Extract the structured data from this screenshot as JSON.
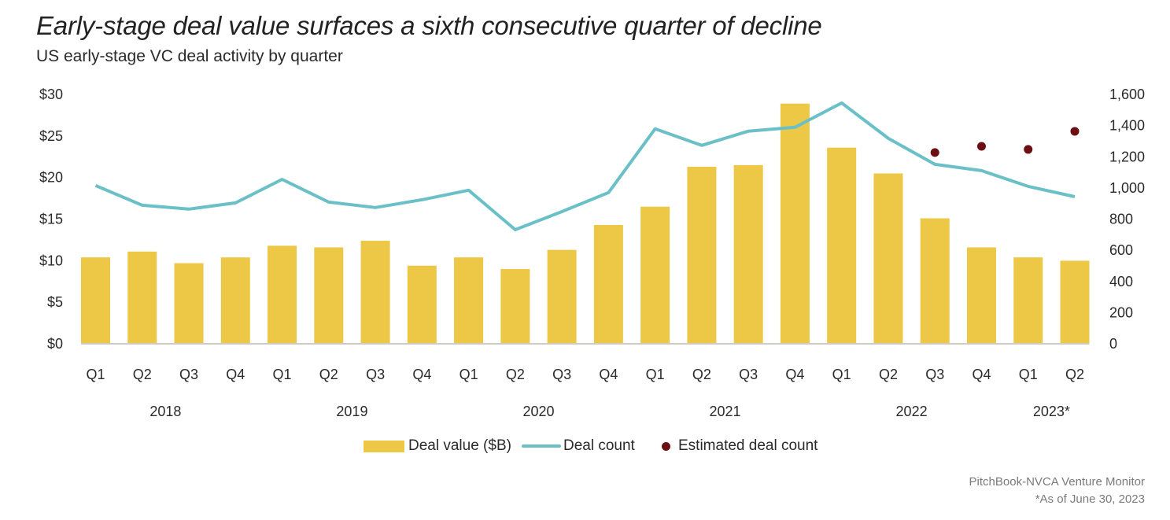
{
  "header": {
    "title": "Early-stage deal value surfaces a sixth consecutive quarter of decline",
    "subtitle": "US early-stage VC deal activity by quarter"
  },
  "legend": {
    "items": [
      {
        "label": "Deal value ($B)",
        "kind": "bar"
      },
      {
        "label": "Deal count",
        "kind": "line"
      },
      {
        "label": "Estimated deal count",
        "kind": "dot"
      }
    ]
  },
  "footer": {
    "source": "PitchBook-NVCA Venture Monitor",
    "note": "*As of June 30, 2023"
  },
  "chart_data": {
    "type": "bar",
    "title": "Early-stage deal value surfaces a sixth consecutive quarter of decline",
    "subtitle": "US early-stage VC deal activity by quarter",
    "xlabel": "",
    "ylabel": "Deal value ($B)",
    "y2label": "Deal count",
    "categories": [
      "Q1",
      "Q2",
      "Q3",
      "Q4",
      "Q1",
      "Q2",
      "Q3",
      "Q4",
      "Q1",
      "Q2",
      "Q3",
      "Q4",
      "Q1",
      "Q2",
      "Q3",
      "Q4",
      "Q1",
      "Q2",
      "Q3",
      "Q4",
      "Q1",
      "Q2"
    ],
    "year_groups": [
      {
        "label": "2018",
        "start": 0,
        "end": 3
      },
      {
        "label": "2019",
        "start": 4,
        "end": 7
      },
      {
        "label": "2020",
        "start": 8,
        "end": 11
      },
      {
        "label": "2021",
        "start": 12,
        "end": 15
      },
      {
        "label": "2022",
        "start": 16,
        "end": 19
      },
      {
        "label": "2023*",
        "start": 20,
        "end": 21
      }
    ],
    "ylim": [
      0,
      30
    ],
    "y_ticks": [
      0,
      5,
      10,
      15,
      20,
      25,
      30
    ],
    "y_tick_labels": [
      "$0",
      "$5",
      "$10",
      "$15",
      "$20",
      "$25",
      "$30"
    ],
    "y2lim": [
      0,
      1600
    ],
    "y2_ticks": [
      0,
      200,
      400,
      600,
      800,
      1000,
      1200,
      1400,
      1600
    ],
    "y2_tick_labels": [
      "0",
      "200",
      "400",
      "600",
      "800",
      "1,000",
      "1,200",
      "1,400",
      "1,600"
    ],
    "grid": false,
    "legend_position": "bottom",
    "series": [
      {
        "name": "Deal value ($B)",
        "type": "bar",
        "axis": "left",
        "color": "#ECC846",
        "values": [
          10.3,
          11.0,
          9.6,
          10.3,
          11.7,
          11.5,
          12.3,
          9.3,
          10.3,
          8.9,
          11.2,
          14.2,
          16.4,
          21.2,
          21.4,
          28.8,
          23.5,
          20.4,
          15.0,
          11.5,
          10.3,
          9.9
        ]
      },
      {
        "name": "Deal count",
        "type": "line",
        "axis": "right",
        "color": "#6BC0C8",
        "values": [
          1010,
          884,
          859,
          899,
          1050,
          904,
          869,
          919,
          980,
          727,
          843,
          965,
          1374,
          1268,
          1359,
          1384,
          1540,
          1313,
          1146,
          1106,
          1005,
          939
        ]
      },
      {
        "name": "Estimated deal count",
        "type": "scatter",
        "axis": "right",
        "color": "#6B0F12",
        "values": [
          null,
          null,
          null,
          null,
          null,
          null,
          null,
          null,
          null,
          null,
          null,
          null,
          null,
          null,
          null,
          null,
          null,
          null,
          1222,
          1262,
          1242,
          1358
        ]
      }
    ]
  }
}
